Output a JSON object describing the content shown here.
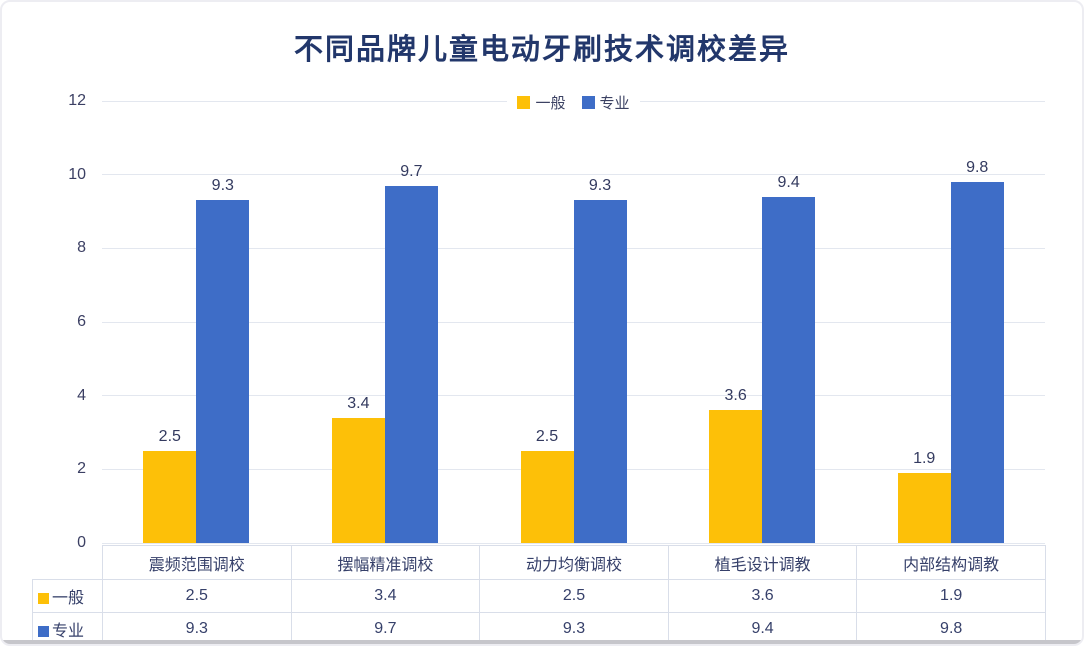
{
  "title": "不同品牌儿童电动牙刷技术调校差异",
  "colors": {
    "series_general": "#fdc008",
    "series_professional": "#3e6dc7",
    "title_text": "#22376b",
    "axis_text": "#3b3f63",
    "gridline": "#e3e7ef",
    "table_border": "#d9dee9"
  },
  "chart_data": {
    "type": "bar",
    "title": "不同品牌儿童电动牙刷技术调校差异",
    "categories": [
      "震频范围调校",
      "摆幅精准调校",
      "动力均衡调校",
      "植毛设计调教",
      "内部结构调教"
    ],
    "series": [
      {
        "name": "一般",
        "color": "#fdc008",
        "values": [
          2.5,
          3.4,
          2.5,
          3.6,
          1.9
        ]
      },
      {
        "name": "专业",
        "color": "#3e6dc7",
        "values": [
          9.3,
          9.7,
          9.3,
          9.4,
          9.8
        ]
      }
    ],
    "xlabel": "",
    "ylabel": "",
    "ylim": [
      0,
      12
    ],
    "yticks": [
      0,
      2,
      4,
      6,
      8,
      10,
      12
    ],
    "grid": true,
    "legend_position": "top-center",
    "data_labels": true,
    "data_table": true
  }
}
